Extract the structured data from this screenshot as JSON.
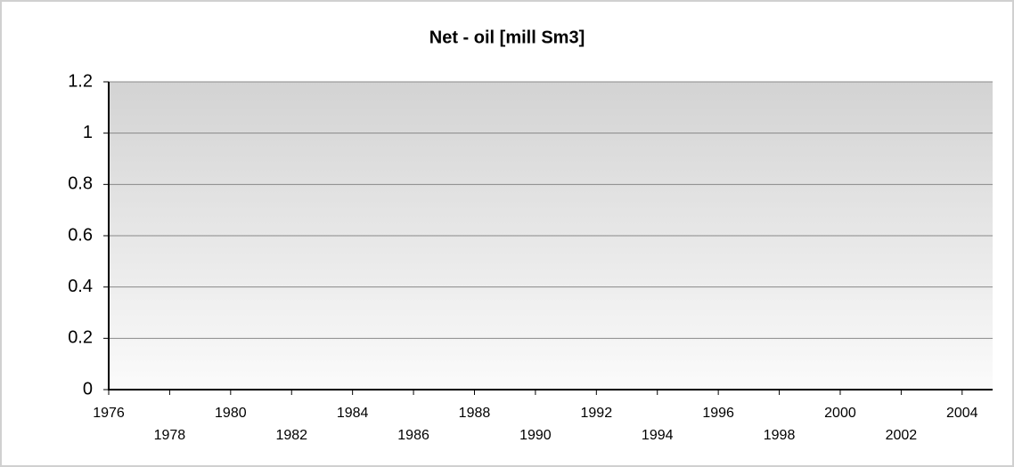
{
  "chart_data": {
    "type": "line",
    "title": "Net - oil [mill Sm3]",
    "series": [],
    "xlim": [
      1976,
      2005
    ],
    "xticks": [
      1976,
      1978,
      1980,
      1982,
      1984,
      1986,
      1988,
      1990,
      1992,
      1994,
      1996,
      1998,
      2000,
      2002,
      2004
    ],
    "ylim": [
      0,
      1.2
    ],
    "yticks": [
      0,
      0.2,
      0.4,
      0.6,
      0.8,
      1,
      1.2
    ],
    "grid": true
  }
}
